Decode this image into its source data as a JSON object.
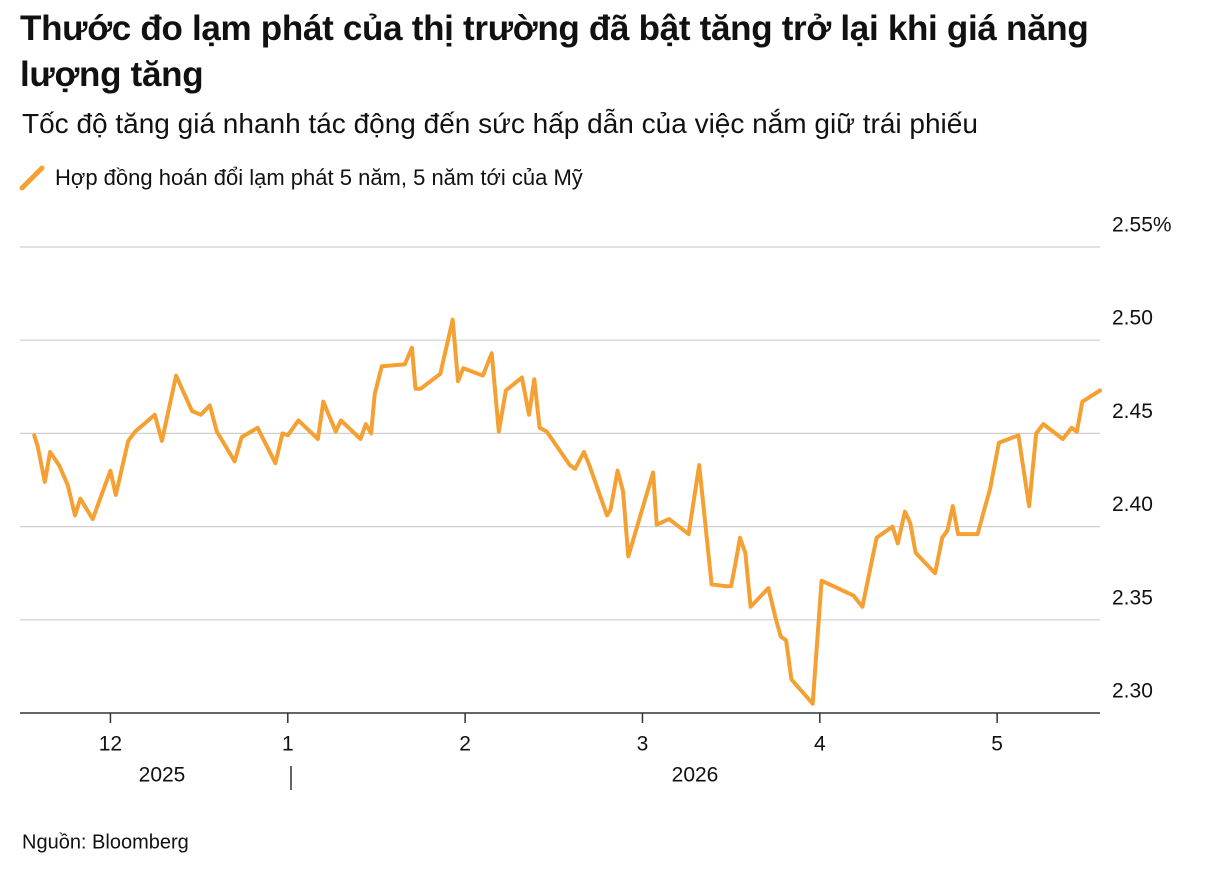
{
  "chart_data": {
    "type": "line",
    "title": "Thước đo lạm phát của thị trường đã bật tăng trở lại khi giá năng lượng tăng",
    "subtitle": "Tốc độ tăng giá nhanh tác động đến sức hấp dẫn của việc nắm giữ trái phiếu",
    "source": "Nguồn: Bloomberg",
    "x": [
      11.57,
      11.59,
      11.63,
      11.66,
      11.71,
      11.76,
      11.8,
      11.83,
      11.9,
      12.0,
      12.03,
      12.1,
      12.14,
      12.25,
      12.29,
      12.37,
      12.46,
      12.51,
      12.56,
      12.6,
      12.7,
      12.74,
      12.83,
      12.93,
      12.97,
      13.0,
      13.06,
      13.17,
      13.2,
      13.27,
      13.3,
      13.41,
      13.44,
      13.47,
      13.49,
      13.53,
      13.66,
      13.7,
      13.72,
      13.75,
      13.86,
      13.93,
      13.96,
      13.99,
      14.1,
      14.15,
      14.19,
      14.23,
      14.32,
      14.36,
      14.39,
      14.42,
      14.46,
      14.59,
      14.62,
      14.67,
      14.7,
      14.8,
      14.82,
      14.86,
      14.89,
      14.92,
      15.06,
      15.08,
      15.15,
      15.26,
      15.32,
      15.39,
      15.47,
      15.5,
      15.52,
      15.55,
      15.58,
      15.61,
      15.71,
      15.75,
      15.78,
      15.81,
      15.84,
      15.96,
      16.01,
      16.19,
      16.24,
      16.32,
      16.41,
      16.44,
      16.48,
      16.51,
      16.54,
      16.65,
      16.69,
      16.72,
      16.75,
      16.78,
      16.89,
      16.93,
      16.96,
      17.01,
      17.12,
      17.18,
      17.22,
      17.26,
      17.37,
      17.42,
      17.45,
      17.48,
      17.58
    ],
    "series": [
      {
        "name": "Hợp đồng hoán đổi lạm phát 5 năm, 5 năm tới của Mỹ",
        "color": "#f5a033",
        "values": [
          2.449,
          2.443,
          2.424,
          2.44,
          2.433,
          2.422,
          2.406,
          2.415,
          2.404,
          2.43,
          2.417,
          2.446,
          2.451,
          2.46,
          2.446,
          2.481,
          2.462,
          2.46,
          2.465,
          2.451,
          2.435,
          2.448,
          2.453,
          2.434,
          2.45,
          2.449,
          2.457,
          2.447,
          2.467,
          2.451,
          2.457,
          2.447,
          2.455,
          2.45,
          2.471,
          2.486,
          2.487,
          2.496,
          2.474,
          2.474,
          2.482,
          2.511,
          2.478,
          2.485,
          2.481,
          2.493,
          2.451,
          2.473,
          2.48,
          2.46,
          2.479,
          2.453,
          2.451,
          2.433,
          2.431,
          2.44,
          2.433,
          2.406,
          2.409,
          2.43,
          2.419,
          2.384,
          2.429,
          2.401,
          2.404,
          2.396,
          2.433,
          2.369,
          2.368,
          2.368,
          2.378,
          2.394,
          2.386,
          2.357,
          2.367,
          2.351,
          2.341,
          2.339,
          2.318,
          2.305,
          2.371,
          2.363,
          2.357,
          2.394,
          2.4,
          2.391,
          2.408,
          2.402,
          2.386,
          2.375,
          2.394,
          2.398,
          2.411,
          2.396,
          2.396,
          2.41,
          2.42,
          2.445,
          2.449,
          2.411,
          2.45,
          2.455,
          2.447,
          2.453,
          2.451,
          2.467,
          2.473
        ]
      }
    ],
    "xlim": [
      11.49,
      17.58
    ],
    "xticks": [
      {
        "value": 12,
        "label": "12"
      },
      {
        "value": 13,
        "label": "1"
      },
      {
        "value": 14,
        "label": "2"
      },
      {
        "value": 15,
        "label": "3"
      },
      {
        "value": 16,
        "label": "4"
      },
      {
        "value": 17,
        "label": "5"
      }
    ],
    "year_labels": [
      "2025",
      "2026"
    ],
    "ylim": [
      2.3,
      2.55
    ],
    "yticks": [
      {
        "value": 2.55,
        "label": "2.55%"
      },
      {
        "value": 2.5,
        "label": "2.50"
      },
      2.45,
      {
        "value": 2.4,
        "label": "2.40"
      },
      2.35,
      {
        "value": 2.3,
        "label": "2.30"
      }
    ],
    "grid": true
  }
}
